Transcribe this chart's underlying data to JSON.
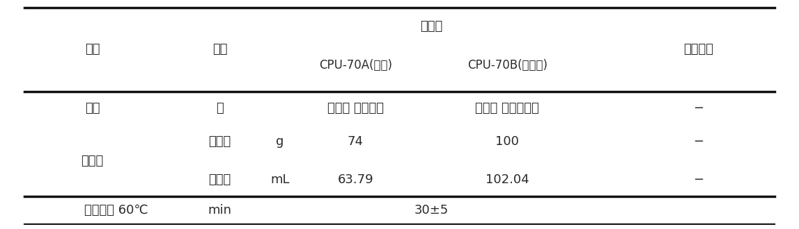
{
  "title": "특성치",
  "col_header_1": "항목",
  "col_header_2": "단위",
  "col_header_3a": "CPU-70A(주제)",
  "col_header_3b": "CPU-70B(경화제)",
  "col_header_4": "시험방법",
  "row_waegwan": [
    "외관",
    "색",
    "연황색 투명액체",
    "연황색 반투명액체",
    "−"
  ],
  "row_mugebi": [
    "무게비",
    "g",
    "74",
    "100",
    "−"
  ],
  "row_bupyibi": [
    "부피비",
    "mL",
    "63.79",
    "102.04",
    "−"
  ],
  "row_baehab": "배합비",
  "row_footer": [
    "경화시간 60℃",
    "min",
    "30±5"
  ],
  "bg_color": "#ffffff",
  "text_color": "#2a2a2a",
  "line_color": "#111111",
  "font_size": 13
}
